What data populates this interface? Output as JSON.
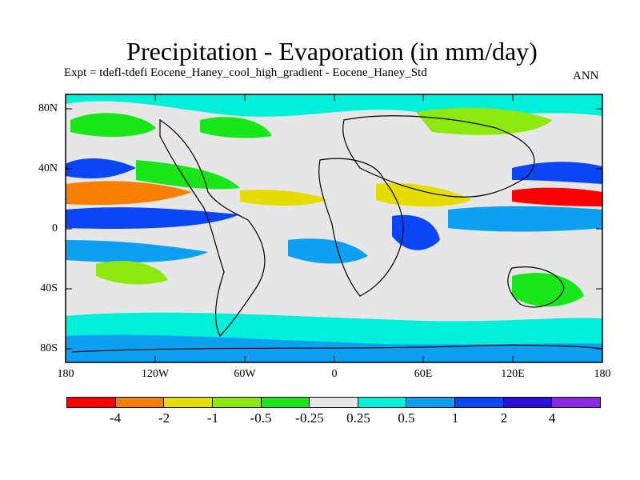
{
  "title": "Precipitation - Evaporation (in mm/day)",
  "subtitle": "Expt = tdefl-tdefi  Eocene_Haney_cool_high_gradient - Eocene_Haney_Std",
  "season": "ANN",
  "axes": {
    "lat_labels": [
      "80N",
      "40N",
      "0",
      "40S",
      "80S"
    ],
    "lon_labels": [
      "180",
      "120W",
      "60W",
      "0",
      "60E",
      "120E",
      "180"
    ]
  },
  "colorbar": {
    "colors": [
      "#ff0000",
      "#f57f00",
      "#e6dd00",
      "#8ce80f",
      "#19e619",
      "#e6e6e6",
      "#00efd9",
      "#0ea0f0",
      "#0a46f5",
      "#2c0ed9",
      "#8a2be2"
    ],
    "labels": [
      "-4",
      "-2",
      "-1",
      "-0.5",
      "-0.25",
      "0.25",
      "0.5",
      "1",
      "2",
      "4"
    ]
  },
  "map_fields": [
    {
      "color": "#00efd9",
      "desc": "northern high latitude band"
    },
    {
      "color": "#19e619",
      "desc": "north pacific and atlantic"
    },
    {
      "color": "#0a46f5",
      "desc": "equatorial pacific"
    },
    {
      "color": "#f57f00",
      "desc": "subtropical pacific"
    },
    {
      "color": "#0ea0f0",
      "desc": "southern ocean"
    }
  ]
}
